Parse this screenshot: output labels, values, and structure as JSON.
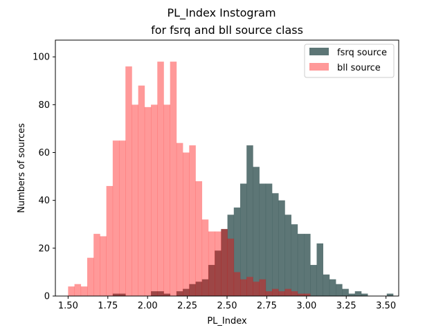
{
  "chart_data": {
    "type": "bar",
    "subtype": "overlaid-histogram",
    "title_line1": "PL_Index Instogram",
    "title_line2": "for fsrq and bll source class",
    "xlabel": "PL_Index",
    "ylabel": "Numbers of sources",
    "xlim": [
      1.42,
      3.58
    ],
    "ylim": [
      0,
      107
    ],
    "bin_width": 0.0401,
    "bin_start": 1.5,
    "x_ticks": [
      "1.50",
      "1.75",
      "2.00",
      "2.25",
      "2.50",
      "2.75",
      "3.00",
      "3.25",
      "3.50"
    ],
    "y_ticks": [
      "0",
      "20",
      "40",
      "60",
      "80",
      "100"
    ],
    "legend": {
      "placement": "upper right"
    },
    "series": [
      {
        "name": "fsrq source",
        "color": "#2f4f4f",
        "alpha": 0.78,
        "values": [
          0,
          0,
          0,
          0,
          0,
          0,
          0,
          1,
          1,
          0,
          0,
          0,
          0,
          2,
          2,
          1,
          0,
          2,
          3,
          5,
          6,
          7,
          13,
          19,
          28,
          34,
          37,
          47,
          63,
          54,
          47,
          47,
          43,
          40,
          34,
          30,
          26,
          26,
          13,
          22,
          9,
          7,
          5,
          3,
          1,
          2,
          1,
          0,
          0,
          0,
          1,
          0
        ]
      },
      {
        "name": "bll source",
        "color": "#ff0000",
        "alpha": 0.4,
        "values": [
          4,
          5,
          4,
          16,
          26,
          25,
          46,
          65,
          65,
          96,
          80,
          88,
          79,
          80,
          98,
          80,
          98,
          64,
          60,
          63,
          48,
          32,
          27,
          27,
          28,
          24,
          10,
          7,
          8,
          6,
          7,
          2,
          3,
          2,
          3,
          2,
          1,
          1,
          0,
          0,
          0,
          0,
          0,
          0,
          0,
          0,
          0,
          0,
          0,
          0,
          0,
          0
        ]
      }
    ]
  }
}
